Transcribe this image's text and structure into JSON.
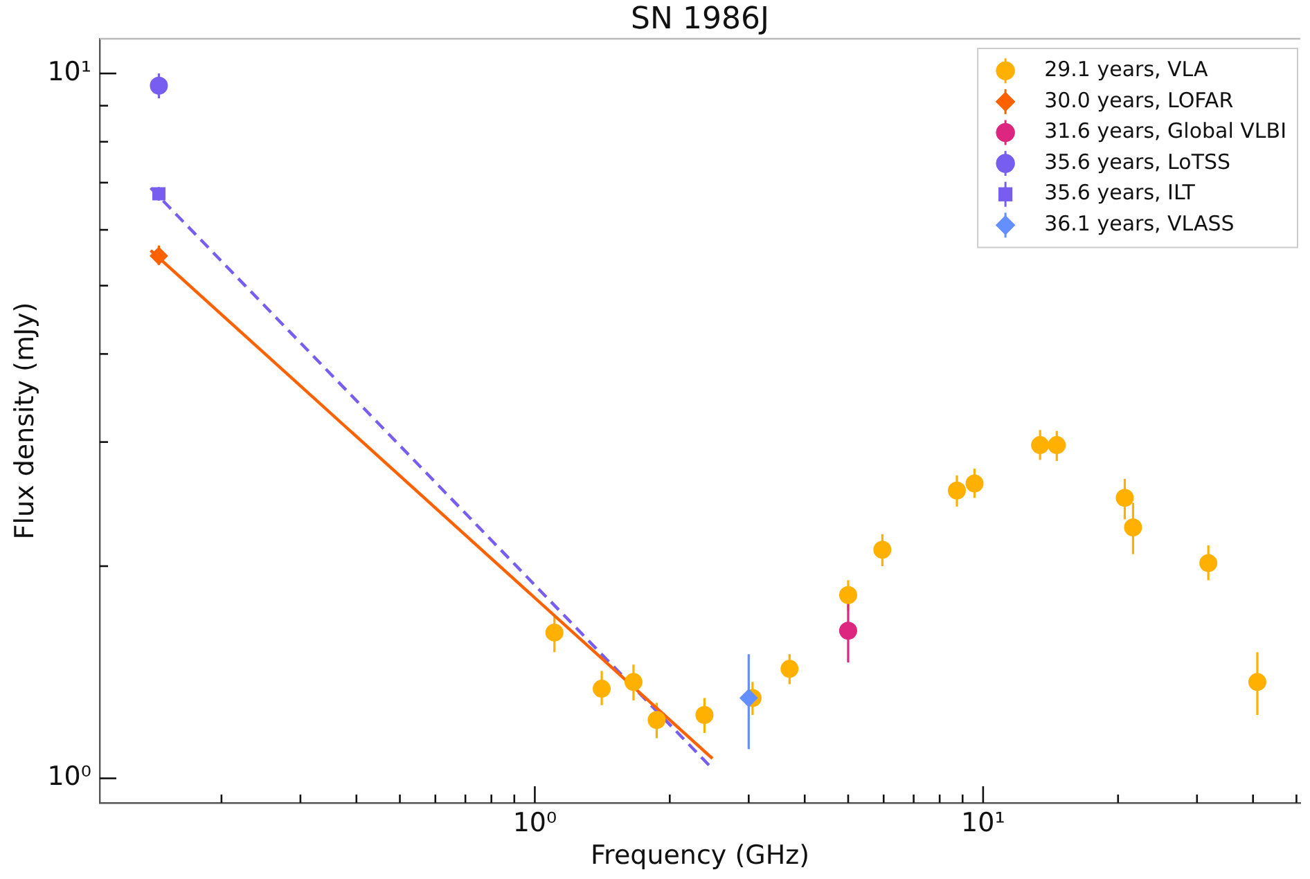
{
  "chart_data": {
    "type": "scatter",
    "title": "SN 1986J",
    "xlabel": "Frequency (GHz)",
    "ylabel": "Flux density (mJy)",
    "log": "xy",
    "legend": "top right",
    "xlim": [
      0.107,
      51
    ],
    "ylim": [
      0.923,
      11.2
    ],
    "xticks": [
      {
        "value": 0.2,
        "label": null
      },
      {
        "value": 0.3,
        "label": null
      },
      {
        "value": 0.4,
        "label": null
      },
      {
        "value": 0.5,
        "label": null
      },
      {
        "value": 0.6,
        "label": null
      },
      {
        "value": 0.7,
        "label": null
      },
      {
        "value": 0.8,
        "label": null
      },
      {
        "value": 0.9,
        "label": null
      },
      {
        "value": 1,
        "label": "10⁰"
      },
      {
        "value": 2,
        "label": null
      },
      {
        "value": 3,
        "label": null
      },
      {
        "value": 4,
        "label": null
      },
      {
        "value": 5,
        "label": null
      },
      {
        "value": 6,
        "label": null
      },
      {
        "value": 7,
        "label": null
      },
      {
        "value": 8,
        "label": null
      },
      {
        "value": 9,
        "label": null
      },
      {
        "value": 10,
        "label": "10¹"
      },
      {
        "value": 20,
        "label": null
      },
      {
        "value": 30,
        "label": null
      },
      {
        "value": 40,
        "label": null
      },
      {
        "value": 50,
        "label": null
      }
    ],
    "yticks": [
      {
        "value": 1,
        "label": "10⁰"
      },
      {
        "value": 2,
        "label": null
      },
      {
        "value": 3,
        "label": null
      },
      {
        "value": 4,
        "label": null
      },
      {
        "value": 5,
        "label": null
      },
      {
        "value": 6,
        "label": null
      },
      {
        "value": 7,
        "label": null
      },
      {
        "value": 8,
        "label": null
      },
      {
        "value": 9,
        "label": null
      },
      {
        "value": 10,
        "label": "10¹"
      }
    ],
    "series": [
      {
        "name": "29.1 years, VLA",
        "color": "#ffb000",
        "marker": "circle",
        "x": [
          1.106,
          1.41,
          1.66,
          1.87,
          2.39,
          3.06,
          3.7,
          5.0,
          5.96,
          8.74,
          9.57,
          13.4,
          14.6,
          20.7,
          21.6,
          31.8,
          40.9
        ],
        "values": [
          1.61,
          1.34,
          1.37,
          1.21,
          1.23,
          1.3,
          1.43,
          1.82,
          2.11,
          2.56,
          2.62,
          2.97,
          2.97,
          2.5,
          2.27,
          2.02,
          1.37
        ],
        "errors": [
          [
            1.51,
            1.7
          ],
          [
            1.27,
            1.42
          ],
          [
            1.29,
            1.45
          ],
          [
            1.14,
            1.28
          ],
          [
            1.16,
            1.3
          ],
          [
            1.23,
            1.37
          ],
          [
            1.36,
            1.5
          ],
          [
            1.73,
            1.91
          ],
          [
            2.0,
            2.22
          ],
          [
            2.43,
            2.69
          ],
          [
            2.5,
            2.75
          ],
          [
            2.83,
            3.12
          ],
          [
            2.82,
            3.11
          ],
          [
            2.33,
            2.66
          ],
          [
            2.08,
            2.46
          ],
          [
            1.91,
            2.14
          ],
          [
            1.23,
            1.51
          ]
        ]
      },
      {
        "name": "30.0 years, LOFAR",
        "color": "#fe6100",
        "marker": "diamond",
        "x": [
          0.145
        ],
        "values": [
          5.51
        ],
        "errors": [
          [
            5.35,
            5.7
          ]
        ]
      },
      {
        "name": "31.6 years, Global VLBI",
        "color": "#dc267f",
        "marker": "circle",
        "x": [
          5.0
        ],
        "values": [
          1.62
        ],
        "errors": [
          [
            1.46,
            1.79
          ]
        ]
      },
      {
        "name": "35.6 years, LoTSS",
        "color": "#785ef0",
        "marker": "circle",
        "x": [
          0.145
        ],
        "values": [
          9.61
        ],
        "errors": [
          [
            9.22,
            10.0
          ]
        ]
      },
      {
        "name": "35.6 years, ILT",
        "color": "#785ef0",
        "marker": "square",
        "x": [
          0.145
        ],
        "values": [
          6.75
        ],
        "errors": [
          [
            6.6,
            6.9
          ]
        ]
      },
      {
        "name": "36.1 years, VLASS",
        "color": "#648fff",
        "marker": "diamond",
        "x": [
          3.0
        ],
        "values": [
          1.3
        ],
        "errors": [
          [
            1.1,
            1.5
          ]
        ]
      },
      {
        "type": "line",
        "color": "#fe6100",
        "line_style": "solid",
        "marker": "none",
        "x": [
          0.139,
          2.49
        ],
        "values": [
          5.61,
          1.067
        ]
      },
      {
        "type": "line",
        "color": "#785ef0",
        "line_style": "dashed",
        "marker": "none",
        "x": [
          0.139,
          2.45
        ],
        "values": [
          6.88,
          1.043
        ]
      }
    ]
  }
}
